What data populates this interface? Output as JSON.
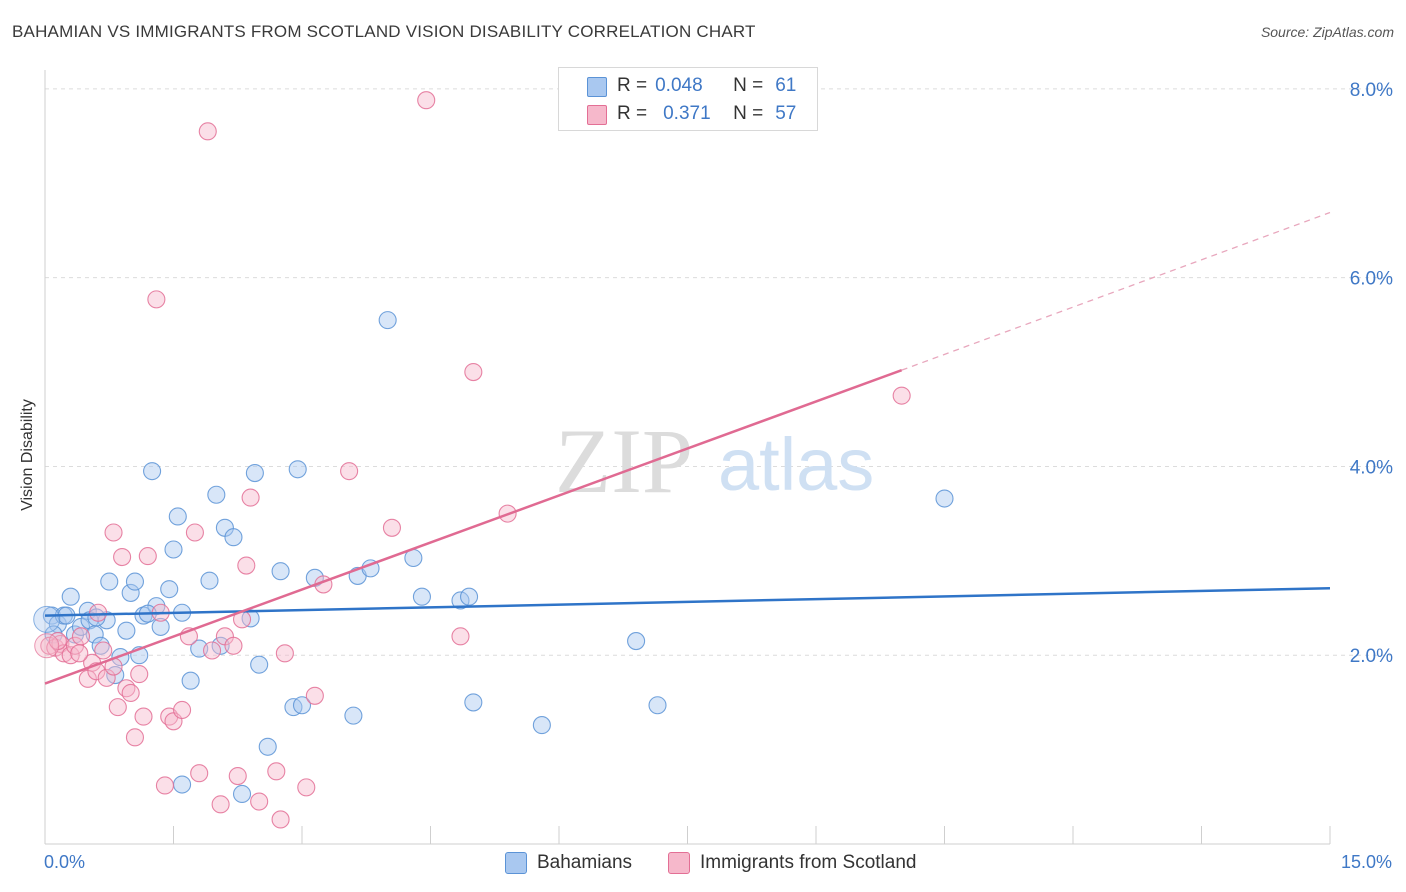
{
  "title": "BAHAMIAN VS IMMIGRANTS FROM SCOTLAND VISION DISABILITY CORRELATION CHART",
  "source": "Source: ZipAtlas.com",
  "watermark": {
    "zip": "ZIP",
    "atlas": "atlas"
  },
  "legend_top": {
    "rows": [
      {
        "r_label": "R =",
        "r_value": "0.048",
        "n_label": "N =",
        "n_value": "61",
        "color": "#a9c8f0"
      },
      {
        "r_label": "R =",
        "r_value": "0.371",
        "n_label": "N =",
        "n_value": "57",
        "color": "#f6b8cb"
      }
    ]
  },
  "legend_bottom": [
    {
      "label": "Bahamians",
      "color": "#a9c8f0"
    },
    {
      "label": "Immigrants from Scotland",
      "color": "#f6b8cb"
    }
  ],
  "chart_data": {
    "type": "scatter",
    "title": "BAHAMIAN VS IMMIGRANTS FROM SCOTLAND VISION DISABILITY CORRELATION CHART",
    "xlabel": "",
    "ylabel": "Vision Disability",
    "xlim": [
      0,
      15
    ],
    "ylim": [
      0,
      8.2
    ],
    "x_tick_labels": [
      "0.0%",
      "15.0%"
    ],
    "y_ticks": [
      2,
      4,
      6,
      8
    ],
    "y_tick_labels": [
      "2.0%",
      "4.0%",
      "6.0%",
      "8.0%"
    ],
    "grid": true,
    "series": [
      {
        "name": "Bahamians",
        "color": "#5b93d6",
        "fill": "#a9c8f0",
        "trend": {
          "x0": 0,
          "y0": 2.42,
          "x1": 15,
          "y1": 2.71
        },
        "points": [
          [
            0.08,
            2.42
          ],
          [
            0.15,
            2.33
          ],
          [
            0.22,
            2.42
          ],
          [
            0.3,
            2.62
          ],
          [
            0.35,
            2.22
          ],
          [
            0.42,
            2.3
          ],
          [
            0.5,
            2.47
          ],
          [
            0.52,
            2.37
          ],
          [
            0.58,
            2.22
          ],
          [
            0.65,
            2.1
          ],
          [
            0.72,
            2.37
          ],
          [
            0.75,
            2.78
          ],
          [
            0.82,
            1.79
          ],
          [
            0.88,
            1.98
          ],
          [
            0.95,
            2.26
          ],
          [
            1.0,
            2.66
          ],
          [
            1.05,
            2.78
          ],
          [
            1.15,
            2.42
          ],
          [
            1.25,
            3.95
          ],
          [
            1.3,
            2.52
          ],
          [
            1.35,
            2.3
          ],
          [
            1.45,
            2.7
          ],
          [
            1.5,
            3.12
          ],
          [
            1.55,
            3.47
          ],
          [
            1.6,
            2.45
          ],
          [
            1.6,
            0.63
          ],
          [
            1.7,
            1.73
          ],
          [
            1.8,
            2.07
          ],
          [
            1.92,
            2.79
          ],
          [
            2.0,
            3.7
          ],
          [
            2.05,
            2.1
          ],
          [
            2.1,
            3.35
          ],
          [
            2.2,
            3.25
          ],
          [
            2.3,
            0.53
          ],
          [
            2.4,
            2.39
          ],
          [
            2.45,
            3.93
          ],
          [
            2.5,
            1.9
          ],
          [
            2.6,
            1.03
          ],
          [
            2.75,
            2.89
          ],
          [
            2.9,
            1.45
          ],
          [
            2.95,
            3.97
          ],
          [
            3.0,
            1.47
          ],
          [
            3.15,
            2.82
          ],
          [
            3.6,
            1.36
          ],
          [
            3.65,
            2.84
          ],
          [
            3.8,
            2.92
          ],
          [
            4.0,
            5.55
          ],
          [
            4.3,
            3.03
          ],
          [
            4.4,
            2.62
          ],
          [
            4.85,
            2.58
          ],
          [
            4.95,
            2.62
          ],
          [
            5.0,
            1.5
          ],
          [
            5.8,
            1.26
          ],
          [
            6.9,
            2.15
          ],
          [
            7.15,
            1.47
          ],
          [
            10.5,
            3.66
          ],
          [
            0.1,
            2.22
          ],
          [
            0.25,
            2.42
          ],
          [
            0.6,
            2.4
          ],
          [
            1.1,
            2.0
          ],
          [
            1.2,
            2.44
          ]
        ]
      },
      {
        "name": "Immigrants from Scotland",
        "color": "#e36f95",
        "fill": "#f6b8cb",
        "trend": {
          "x0": 0,
          "y0": 1.7,
          "x1": 10.0,
          "y1": 5.02,
          "dash_to_x": 15,
          "dash_to_y": 6.69
        },
        "points": [
          [
            0.05,
            2.1
          ],
          [
            0.12,
            2.08
          ],
          [
            0.18,
            2.12
          ],
          [
            0.22,
            2.02
          ],
          [
            0.3,
            2.0
          ],
          [
            0.35,
            2.1
          ],
          [
            0.42,
            2.2
          ],
          [
            0.5,
            1.75
          ],
          [
            0.55,
            1.92
          ],
          [
            0.6,
            1.83
          ],
          [
            0.62,
            2.45
          ],
          [
            0.68,
            2.05
          ],
          [
            0.72,
            1.76
          ],
          [
            0.8,
            1.88
          ],
          [
            0.8,
            3.3
          ],
          [
            0.85,
            1.45
          ],
          [
            0.9,
            3.04
          ],
          [
            0.95,
            1.65
          ],
          [
            1.0,
            1.6
          ],
          [
            1.05,
            1.13
          ],
          [
            1.1,
            1.8
          ],
          [
            1.15,
            1.35
          ],
          [
            1.2,
            3.05
          ],
          [
            1.3,
            5.77
          ],
          [
            1.35,
            2.45
          ],
          [
            1.4,
            0.62
          ],
          [
            1.45,
            1.35
          ],
          [
            1.5,
            1.3
          ],
          [
            1.6,
            1.42
          ],
          [
            1.68,
            2.2
          ],
          [
            1.75,
            3.3
          ],
          [
            1.8,
            0.75
          ],
          [
            1.9,
            7.55
          ],
          [
            1.95,
            2.05
          ],
          [
            2.05,
            0.42
          ],
          [
            2.1,
            2.2
          ],
          [
            2.2,
            2.1
          ],
          [
            2.25,
            0.72
          ],
          [
            2.3,
            2.38
          ],
          [
            2.35,
            2.95
          ],
          [
            2.4,
            3.67
          ],
          [
            2.5,
            0.45
          ],
          [
            2.7,
            0.77
          ],
          [
            2.75,
            0.26
          ],
          [
            2.8,
            2.02
          ],
          [
            3.05,
            0.6
          ],
          [
            3.15,
            1.57
          ],
          [
            3.25,
            2.75
          ],
          [
            3.55,
            3.95
          ],
          [
            4.05,
            3.35
          ],
          [
            4.45,
            7.88
          ],
          [
            4.85,
            2.2
          ],
          [
            5.0,
            5.0
          ],
          [
            5.4,
            3.5
          ],
          [
            10.0,
            4.75
          ],
          [
            0.4,
            2.02
          ],
          [
            0.15,
            2.15
          ]
        ]
      }
    ]
  }
}
